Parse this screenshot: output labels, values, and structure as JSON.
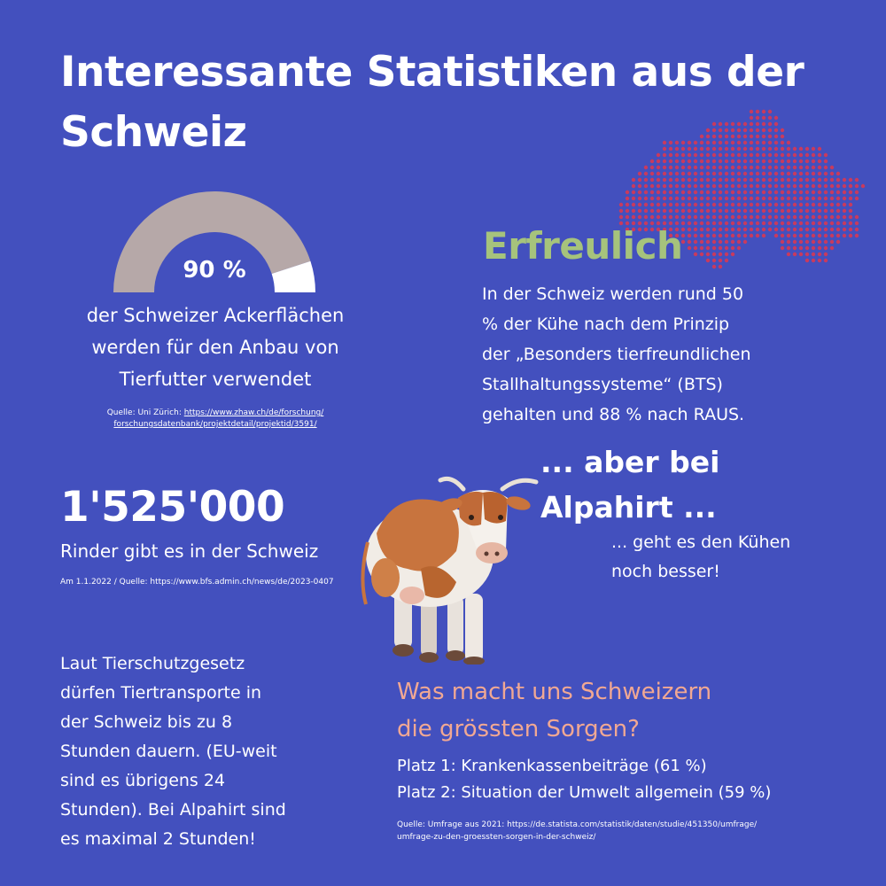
{
  "title": "Interessante Statistiken aus der Schweiz",
  "colors": {
    "background": "#4350be",
    "map_dots": "#c83a5e",
    "gauge_fill": "#b6a8a8",
    "gauge_rest": "#ffffff",
    "erfreulich": "#a6c37c",
    "sorgen": "#f1a893"
  },
  "gauge": {
    "percent_label": "90 %",
    "value": 0.9,
    "text_lines": [
      "der Schweizer Ackerflächen",
      "werden für den Anbau von",
      "Tierfutter verwendet"
    ],
    "source_prefix": "Quelle: Uni Zürich: ",
    "source_link_line1": "https://www.zhaw.ch/de/forschung/",
    "source_link_line2": "forschungsdatenbank/projektdetail/projektid/3591/"
  },
  "erfreulich": {
    "heading": "Erfreulich",
    "lines": [
      "In der Schweiz werden rund 50",
      "% der Kühe nach dem Prinzip",
      "der „Besonders tierfreundlichen",
      "Stallhaltungssysteme“ (BTS)",
      "gehalten und 88 % nach RAUS."
    ]
  },
  "alpahirt": {
    "heading_lines": [
      "... aber bei",
      "Alpahirt ..."
    ],
    "sub_lines": [
      "... geht es den Kühen",
      "noch besser!"
    ]
  },
  "rinder": {
    "number": "1'525'000",
    "label": "Rinder gibt es in der Schweiz",
    "source": "Am 1.1.2022 / Quelle: https://www.bfs.admin.ch/news/de/2023-0407"
  },
  "tierschutz": {
    "lines": [
      "Laut Tierschutzgesetz",
      "dürfen Tiertransporte in",
      "der Schweiz bis zu 8",
      "Stunden dauern. (EU-weit",
      "sind es übrigens 24",
      "Stunden). Bei Alpahirt sind",
      "es maximal 2 Stunden!"
    ]
  },
  "sorgen": {
    "heading_lines": [
      "Was macht uns Schweizern",
      "die grössten Sorgen?"
    ],
    "platz": [
      "Platz 1: Krankenkassenbeiträge (61 %)",
      "Platz 2: Situation der Umwelt allgemein (59 %)"
    ],
    "source_lines": [
      "Quelle: Umfrage aus 2021: https://de.statista.com/statistik/daten/studie/451350/umfrage/",
      "umfrage-zu-den-groessten-sorgen-in-der-schweiz/"
    ]
  }
}
